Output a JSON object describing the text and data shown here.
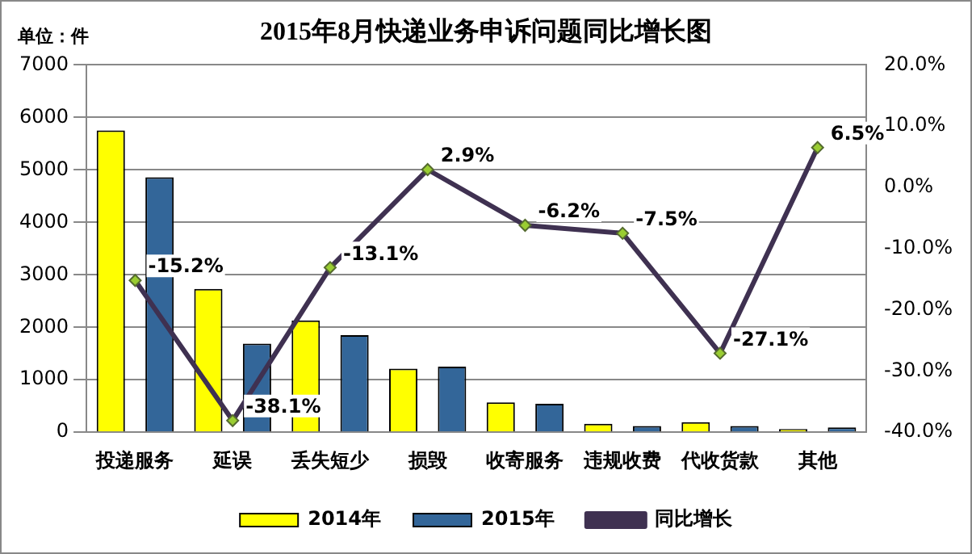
{
  "chart_data": {
    "type": "bar",
    "title": "2015年8月快递业务申诉问题同比增长图",
    "annotations": [
      "单位：件"
    ],
    "categories": [
      "投递服务",
      "延误",
      "丢失短少",
      "损毁",
      "收寄服务",
      "违规收费",
      "代收货款",
      "其他"
    ],
    "series": [
      {
        "name": "2014年",
        "color": "#ffff00",
        "values": [
          5750,
          2730,
          2130,
          1210,
          570,
          160,
          190,
          60
        ]
      },
      {
        "name": "2015年",
        "color": "#336699",
        "values": [
          4860,
          1690,
          1850,
          1250,
          540,
          120,
          120,
          90
        ]
      },
      {
        "name": "同比增长",
        "type": "line",
        "axis": "y2",
        "color": "#3f3151",
        "values": [
          -15.2,
          -38.1,
          -13.1,
          2.9,
          -6.2,
          -7.5,
          -27.1,
          6.5
        ],
        "value_labels": [
          "-15.2%",
          "-38.1%",
          "-13.1%",
          "2.9%",
          "-6.2%",
          "-7.5%",
          "-27.1%",
          "6.5%"
        ]
      }
    ],
    "ylim": [
      0,
      7000
    ],
    "yticks": [
      0,
      1000,
      2000,
      3000,
      4000,
      5000,
      6000,
      7000
    ],
    "y2lim": [
      -40,
      20
    ],
    "y2ticks": [
      {
        "value": -40,
        "label": "-40.0%"
      },
      {
        "value": -30,
        "label": "-30.0%"
      },
      {
        "value": -20,
        "label": "-20.0%"
      },
      {
        "value": -10,
        "label": "-10.0%"
      },
      {
        "value": 0,
        "label": "0.0%"
      },
      {
        "value": 10,
        "label": "10.0%"
      },
      {
        "value": 20,
        "label": "20.0%"
      }
    ],
    "grid": "y",
    "legend": "bottom",
    "marker": "diamond",
    "line_style": "solid"
  }
}
